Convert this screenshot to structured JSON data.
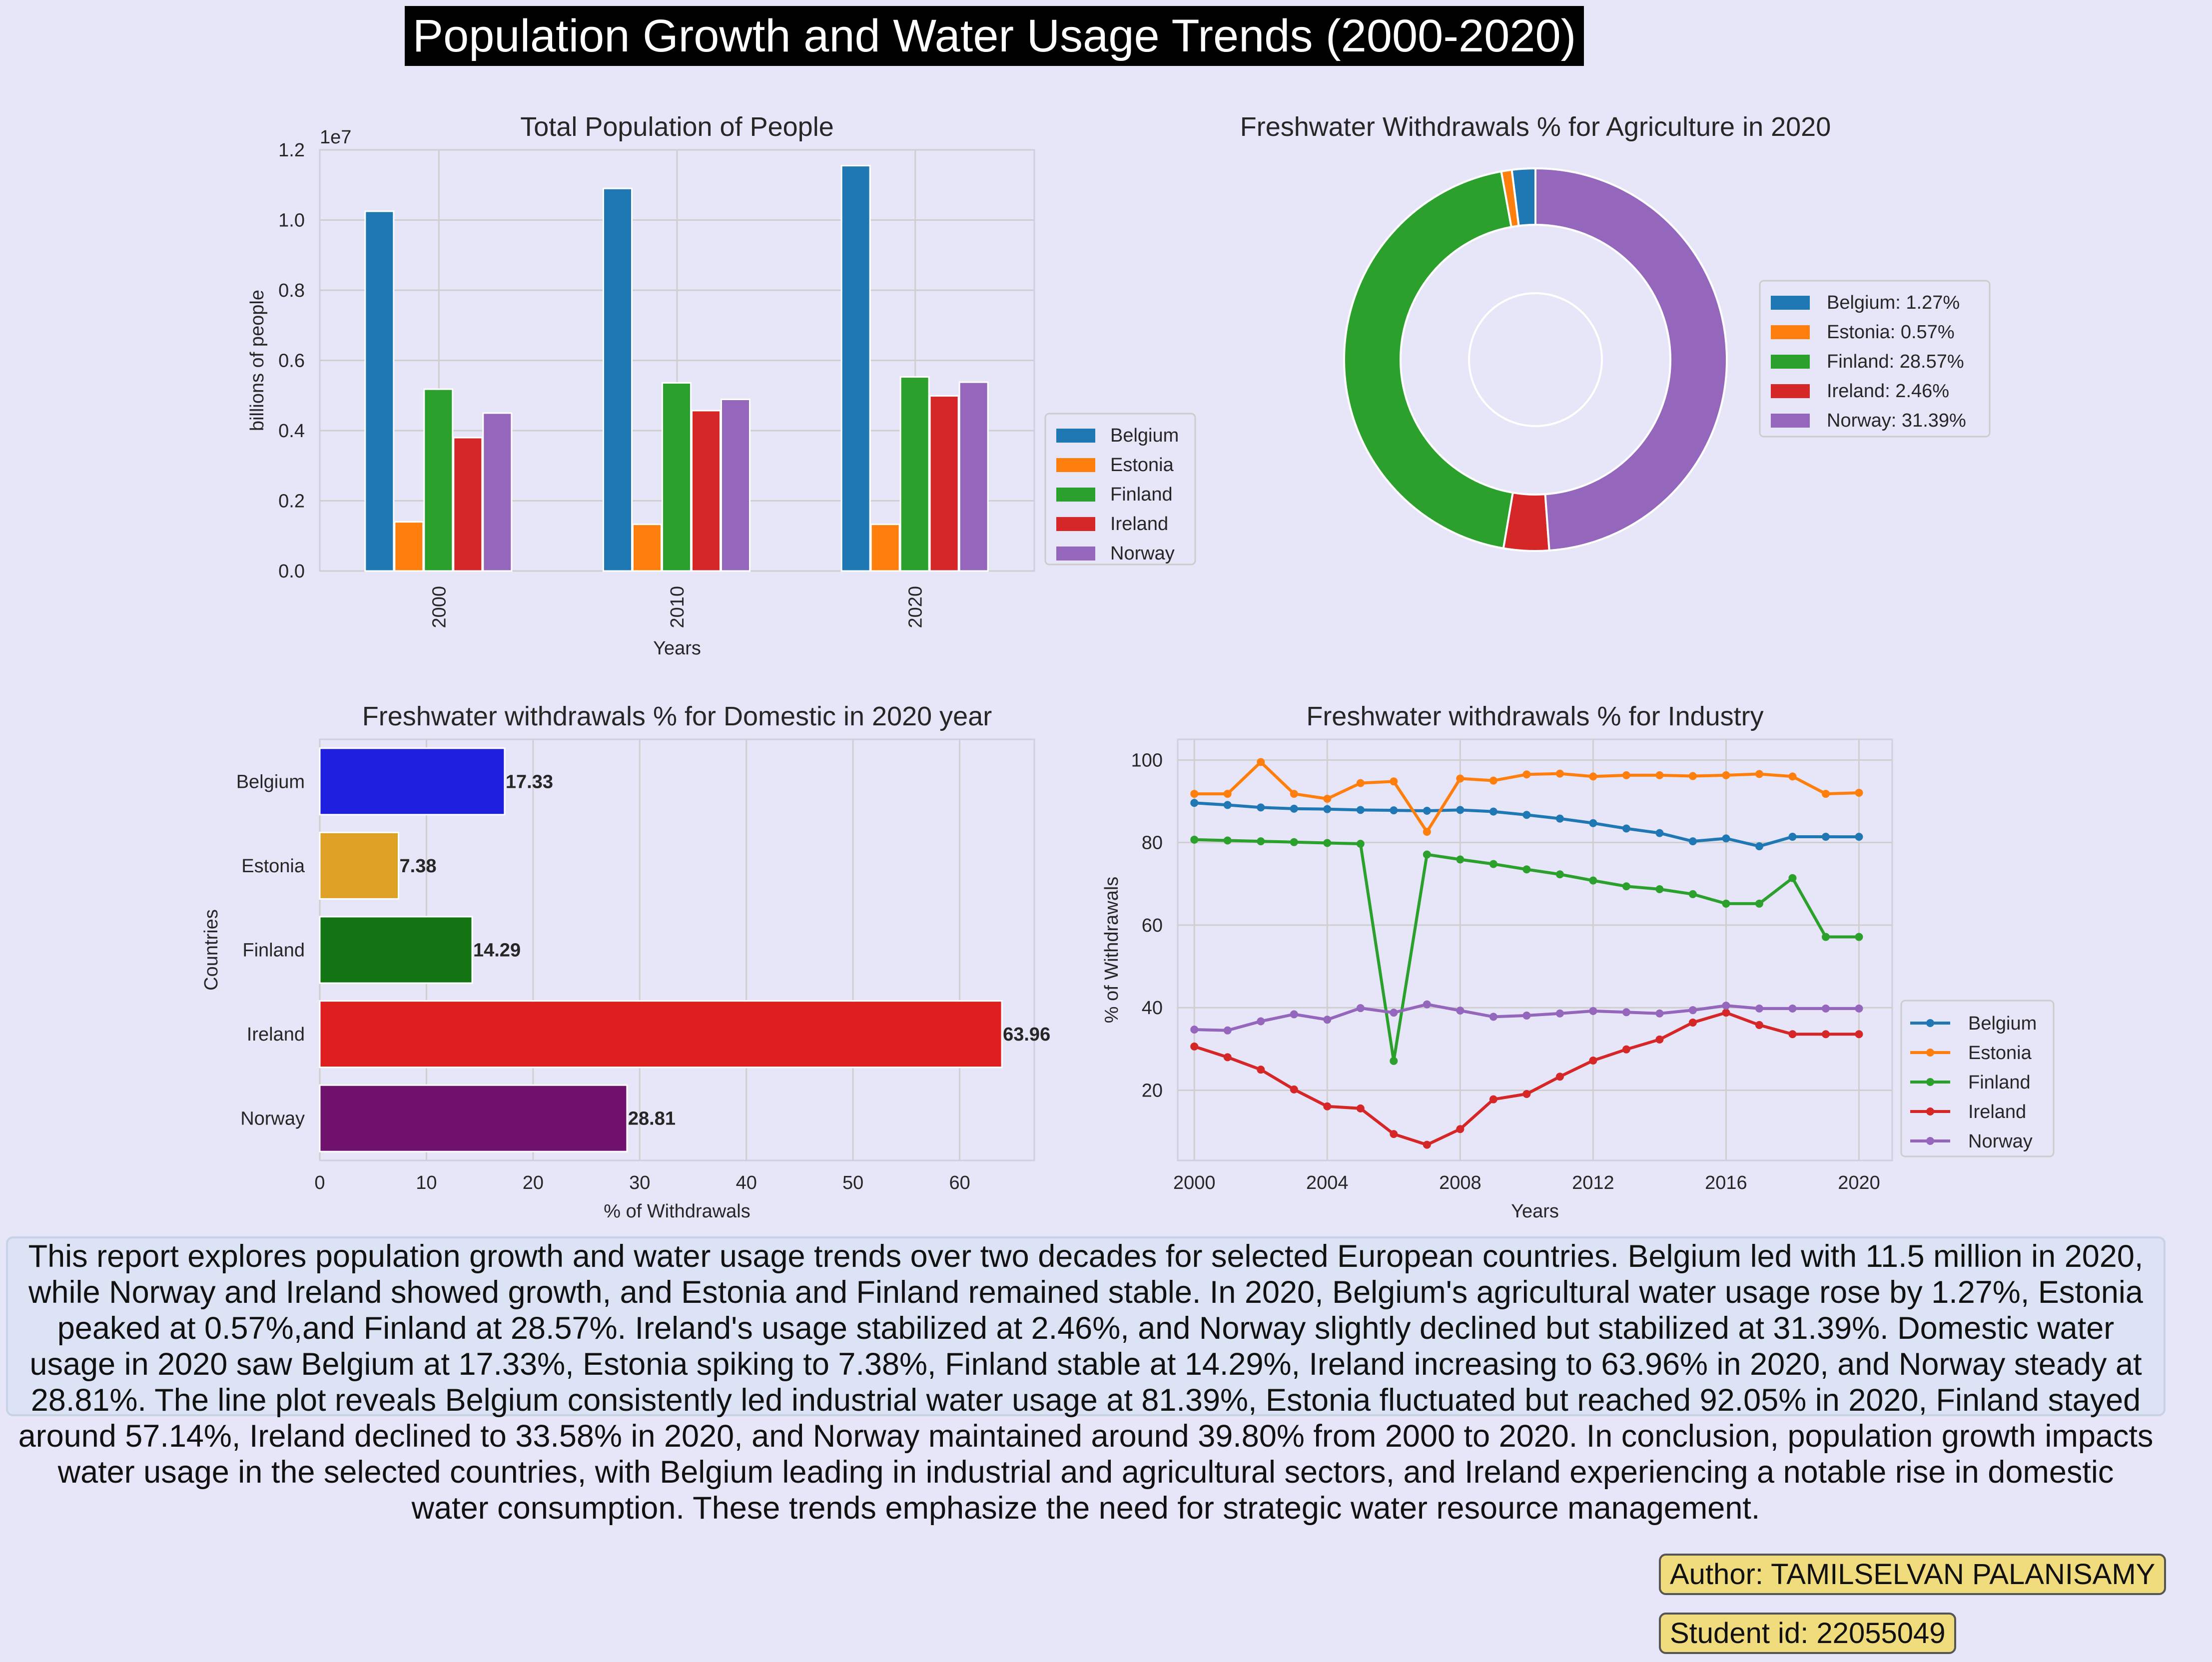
{
  "main_title": "Population Growth and Water Usage Trends (2000-2020)",
  "chart_data": [
    {
      "id": "population",
      "type": "bar",
      "title": "Total Population of People",
      "xlabel": "Years",
      "ylabel": "billions of people",
      "offset_label": "1e7",
      "categories": [
        "2000",
        "2010",
        "2020"
      ],
      "series": [
        {
          "name": "Belgium",
          "color": "#1f77b4",
          "values": [
            1.025,
            1.09,
            1.155
          ]
        },
        {
          "name": "Estonia",
          "color": "#ff7f0e",
          "values": [
            0.14,
            0.133,
            0.133
          ]
        },
        {
          "name": "Finland",
          "color": "#2ca02c",
          "values": [
            0.518,
            0.536,
            0.553
          ]
        },
        {
          "name": "Ireland",
          "color": "#d62728",
          "values": [
            0.38,
            0.457,
            0.499
          ]
        },
        {
          "name": "Norway",
          "color": "#9467bd",
          "values": [
            0.45,
            0.489,
            0.538
          ]
        }
      ],
      "yticks": [
        "0.0",
        "0.2",
        "0.4",
        "0.6",
        "0.8",
        "1.0",
        "1.2"
      ],
      "ylim": [
        0,
        1.2
      ],
      "grid": true,
      "legend": "outside-right"
    },
    {
      "id": "agriculture",
      "type": "pie",
      "title": "Freshwater Withdrawals % for Agriculture in 2020",
      "slices": [
        {
          "label": "Belgium: 1.27%",
          "value": 1.27,
          "color": "#1f77b4"
        },
        {
          "label": "Estonia: 0.57%",
          "value": 0.57,
          "color": "#ff7f0e"
        },
        {
          "label": "Finland: 28.57%",
          "value": 28.57,
          "color": "#2ca02c"
        },
        {
          "label": "Ireland: 2.46%",
          "value": 2.46,
          "color": "#d62728"
        },
        {
          "label": "Norway: 31.39%",
          "value": 31.39,
          "color": "#9467bd"
        }
      ],
      "donut": true,
      "legend": "right"
    },
    {
      "id": "domestic",
      "type": "bar",
      "orientation": "horizontal",
      "title": "Freshwater withdrawals % for Domestic in 2020 year",
      "xlabel": "% of Withdrawals",
      "ylabel": "Countries",
      "categories": [
        "Belgium",
        "Estonia",
        "Finland",
        "Ireland",
        "Norway"
      ],
      "values": [
        17.33,
        7.38,
        14.29,
        63.96,
        28.81
      ],
      "labels": [
        "17.33",
        "7.38",
        "14.29",
        "63.96",
        "28.81"
      ],
      "colors": [
        "#1f1fe0",
        "#dfa026",
        "#127412",
        "#df1f1f",
        "#71116e"
      ],
      "xticks": [
        "0",
        "10",
        "20",
        "30",
        "40",
        "50",
        "60"
      ],
      "xlim": [
        0,
        67
      ],
      "grid": true
    },
    {
      "id": "industry",
      "type": "line",
      "title": "Freshwater withdrawals % for Industry",
      "xlabel": "Years",
      "ylabel": "% of Withdrawals",
      "x": [
        2000,
        2001,
        2002,
        2003,
        2004,
        2005,
        2006,
        2007,
        2008,
        2009,
        2010,
        2011,
        2012,
        2013,
        2014,
        2015,
        2016,
        2017,
        2018,
        2019,
        2020
      ],
      "xticks": [
        "2000",
        "2004",
        "2008",
        "2012",
        "2016",
        "2020"
      ],
      "yticks": [
        "20",
        "40",
        "60",
        "80",
        "100"
      ],
      "xlim": [
        1999.5,
        2021
      ],
      "ylim": [
        3,
        105
      ],
      "series": [
        {
          "name": "Belgium",
          "color": "#1f77b4",
          "values": [
            89.6,
            89.1,
            88.5,
            88.2,
            88.1,
            87.9,
            87.8,
            87.7,
            87.9,
            87.5,
            86.7,
            85.8,
            84.7,
            83.4,
            82.3,
            80.3,
            81.0,
            79.1,
            81.4,
            81.4,
            81.39
          ]
        },
        {
          "name": "Estonia",
          "color": "#ff7f0e",
          "values": [
            91.8,
            91.8,
            99.5,
            91.8,
            90.6,
            94.4,
            94.8,
            82.6,
            95.5,
            95.0,
            96.5,
            96.7,
            96.0,
            96.3,
            96.3,
            96.1,
            96.3,
            96.6,
            96.0,
            91.8,
            92.05
          ]
        },
        {
          "name": "Finland",
          "color": "#2ca02c",
          "values": [
            80.7,
            80.5,
            80.3,
            80.1,
            79.9,
            79.7,
            27.1,
            77.1,
            75.9,
            74.8,
            73.5,
            72.3,
            70.8,
            69.4,
            68.7,
            67.5,
            65.2,
            65.2,
            71.4,
            57.14,
            57.14
          ]
        },
        {
          "name": "Ireland",
          "color": "#d62728",
          "values": [
            30.6,
            28.0,
            25.0,
            20.2,
            16.1,
            15.6,
            9.4,
            6.8,
            10.6,
            17.8,
            19.1,
            23.3,
            27.2,
            29.9,
            32.3,
            36.4,
            38.8,
            35.8,
            33.58,
            33.58,
            33.58
          ]
        },
        {
          "name": "Norway",
          "color": "#9467bd",
          "values": [
            34.7,
            34.5,
            36.7,
            38.4,
            37.1,
            39.9,
            38.8,
            40.8,
            39.3,
            37.8,
            38.1,
            38.6,
            39.2,
            38.9,
            38.6,
            39.4,
            40.5,
            39.8,
            39.8,
            39.8,
            39.8
          ]
        }
      ],
      "grid": true,
      "legend": "outside-right-bottom"
    }
  ],
  "summary": "This report explores population growth and water usage trends over two decades  for selected European countries. Belgium led with 11.5 million in 2020, while  Norway and Ireland showed growth, and Estonia and Finland remained stable.   In 2020, Belgium's agricultural water usage rose by 1.27%, Estonia peaked at   0.57%,and Finland at 28.57%. Ireland's usage stabilized at 2.46%, and Norway   slightly declined but stabilized at 31.39%. Domestic water usage in 2020 saw   Belgium at 17.33%, Estonia spiking to 7.38%, Finland stable at 14.29%, Ireland  increasing to 63.96% in 2020, and Norway steady at 28.81%. The line plot   reveals Belgium consistently led industrial water usage at 81.39%, Estonia   fluctuated but reached 92.05% in 2020, Finland stayed around 57.14%, Ireland   declined to 33.58% in 2020, and Norway maintained around 39.80% from 2000 to 2020. In conclusion, population growth impacts water usage in the selected   countries, with Belgium leading in industrial and agricultural sectors, and   Ireland experiencing a notable rise in domestic water consumption. These  trends emphasize the need for strategic water resource management.",
  "author": "Author: TAMILSELVAN PALANISAMY",
  "student_id": "Student id: 22055049"
}
